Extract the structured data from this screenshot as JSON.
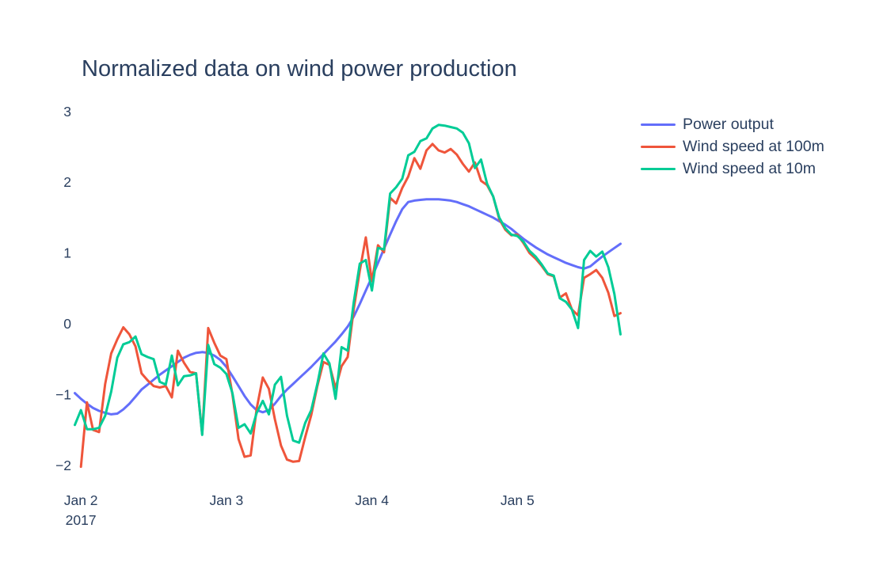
{
  "chart_data": {
    "type": "line",
    "title": "Normalized data on wind power production",
    "background_color": "#ffffff",
    "text_color": "#2a3f5f",
    "grid": false,
    "legend_position": "right",
    "x_axis": {
      "unit": "hourly samples, Jan 1 2017 23:00 to Jan 5 2017 17:00",
      "ticks": [
        {
          "index": 1,
          "label": "Jan 2",
          "sublabel": "2017"
        },
        {
          "index": 25,
          "label": "Jan 3",
          "sublabel": ""
        },
        {
          "index": 49,
          "label": "Jan 4",
          "sublabel": ""
        },
        {
          "index": 73,
          "label": "Jan 5",
          "sublabel": ""
        }
      ]
    },
    "y_axis": {
      "ticks": [
        3,
        2,
        1,
        0,
        -1,
        -2
      ],
      "range": [
        -2.15,
        3.2
      ]
    },
    "series": [
      {
        "name": "Power output",
        "color": "#636efa",
        "values": [
          -0.98,
          -1.06,
          -1.13,
          -1.19,
          -1.23,
          -1.26,
          -1.28,
          -1.27,
          -1.21,
          -1.13,
          -1.03,
          -0.93,
          -0.86,
          -0.79,
          -0.72,
          -0.66,
          -0.6,
          -0.54,
          -0.48,
          -0.44,
          -0.41,
          -0.4,
          -0.41,
          -0.45,
          -0.51,
          -0.61,
          -0.74,
          -0.88,
          -1.02,
          -1.14,
          -1.22,
          -1.25,
          -1.22,
          -1.13,
          -1.02,
          -0.93,
          -0.85,
          -0.77,
          -0.69,
          -0.61,
          -0.52,
          -0.43,
          -0.34,
          -0.25,
          -0.15,
          -0.04,
          0.1,
          0.28,
          0.47,
          0.66,
          0.86,
          1.06,
          1.26,
          1.45,
          1.62,
          1.72,
          1.74,
          1.75,
          1.76,
          1.76,
          1.76,
          1.75,
          1.74,
          1.72,
          1.69,
          1.66,
          1.62,
          1.58,
          1.54,
          1.5,
          1.45,
          1.4,
          1.34,
          1.27,
          1.2,
          1.14,
          1.08,
          1.03,
          0.98,
          0.94,
          0.9,
          0.86,
          0.83,
          0.8,
          0.78,
          0.81,
          0.88,
          0.95,
          1.01,
          1.07,
          1.13
        ]
      },
      {
        "name": "Wind speed at 100m",
        "color": "#ef553b",
        "values": [
          null,
          -2.02,
          -1.11,
          -1.5,
          -1.53,
          -0.85,
          -0.42,
          -0.22,
          -0.05,
          -0.15,
          -0.32,
          -0.7,
          -0.8,
          -0.88,
          -0.9,
          -0.88,
          -1.04,
          -0.38,
          -0.55,
          -0.68,
          -0.7,
          -1.56,
          -0.06,
          -0.27,
          -0.45,
          -0.5,
          -1.0,
          -1.63,
          -1.88,
          -1.86,
          -1.2,
          -0.76,
          -0.92,
          -1.35,
          -1.72,
          -1.92,
          -1.95,
          -1.94,
          -1.6,
          -1.29,
          -0.88,
          -0.54,
          -0.58,
          -0.91,
          -0.6,
          -0.47,
          0.2,
          0.75,
          1.22,
          0.6,
          1.11,
          1.01,
          1.78,
          1.7,
          1.92,
          2.08,
          2.34,
          2.19,
          2.45,
          2.54,
          2.45,
          2.42,
          2.47,
          2.39,
          2.26,
          2.15,
          2.28,
          2.02,
          1.96,
          1.8,
          1.48,
          1.33,
          1.25,
          1.26,
          1.14,
          1.0,
          0.92,
          0.82,
          0.7,
          0.67,
          0.37,
          0.43,
          0.2,
          0.12,
          0.65,
          0.7,
          0.76,
          0.65,
          0.44,
          0.11,
          0.15
        ]
      },
      {
        "name": "Wind speed at 10m",
        "color": "#00cc96",
        "values": [
          -1.43,
          -1.22,
          -1.49,
          -1.49,
          -1.47,
          -1.3,
          -0.96,
          -0.48,
          -0.29,
          -0.26,
          -0.18,
          -0.43,
          -0.47,
          -0.5,
          -0.82,
          -0.86,
          -0.45,
          -0.87,
          -0.74,
          -0.73,
          -0.7,
          -1.57,
          -0.3,
          -0.57,
          -0.62,
          -0.71,
          -0.98,
          -1.47,
          -1.42,
          -1.55,
          -1.26,
          -1.09,
          -1.28,
          -0.86,
          -0.75,
          -1.3,
          -1.65,
          -1.68,
          -1.4,
          -1.22,
          -0.85,
          -0.42,
          -0.56,
          -1.06,
          -0.33,
          -0.38,
          0.3,
          0.85,
          0.9,
          0.47,
          1.07,
          1.05,
          1.84,
          1.93,
          2.05,
          2.38,
          2.43,
          2.58,
          2.62,
          2.76,
          2.81,
          2.8,
          2.78,
          2.76,
          2.7,
          2.55,
          2.2,
          2.32,
          1.98,
          1.8,
          1.5,
          1.35,
          1.26,
          1.24,
          1.16,
          1.03,
          0.95,
          0.84,
          0.71,
          0.68,
          0.36,
          0.31,
          0.2,
          -0.06,
          0.9,
          1.03,
          0.95,
          1.02,
          0.8,
          0.42,
          -0.15
        ]
      }
    ]
  }
}
